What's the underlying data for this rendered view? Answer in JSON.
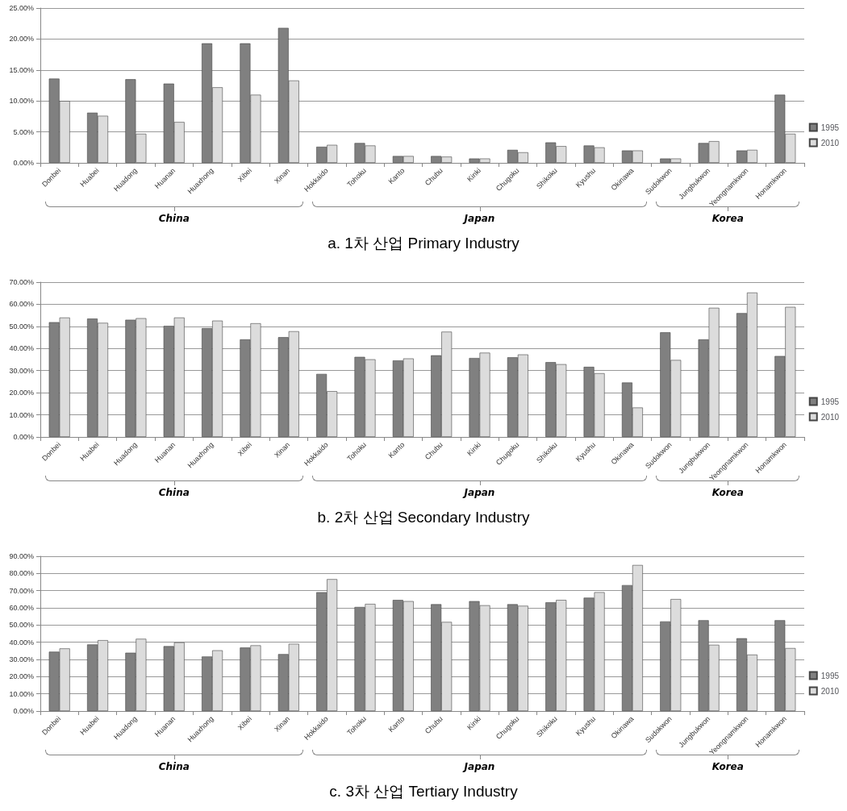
{
  "chart_data": [
    {
      "type": "bar",
      "title": "a. 1차 산업 Primary Industry",
      "categories": [
        "Donbei",
        "Huabei",
        "Huadong",
        "Huanan",
        "Huaxhong",
        "Xibei",
        "Xinan",
        "Hokkaido",
        "Tohoku",
        "Kanto",
        "Chubu",
        "Kinki",
        "Chugoku",
        "Shikoku",
        "Kyushu",
        "Okinawa",
        "Sudokwon",
        "Jungbukwon",
        "Yeongnamkwon",
        "Honamkwon"
      ],
      "series": [
        {
          "name": "1995",
          "color": "#808080",
          "values": [
            13.6,
            8.1,
            13.5,
            12.8,
            19.3,
            19.3,
            21.8,
            2.6,
            3.2,
            1.1,
            1.1,
            0.7,
            2.1,
            3.3,
            2.8,
            2.0,
            0.7,
            3.2,
            2.0,
            11.0
          ]
        },
        {
          "name": "2010",
          "color": "#dcdcdc",
          "values": [
            10.0,
            7.6,
            4.7,
            6.6,
            12.2,
            11.0,
            13.3,
            2.9,
            2.8,
            1.1,
            1.0,
            0.7,
            1.7,
            2.7,
            2.5,
            2.0,
            0.7,
            3.5,
            2.1,
            4.7
          ]
        }
      ],
      "ylim": [
        0,
        25
      ],
      "yticks": [
        {
          "value": 0,
          "label": "0.00%"
        },
        {
          "value": 5,
          "label": "5.00%"
        },
        {
          "value": 10,
          "label": "10.00%"
        },
        {
          "value": 15,
          "label": "15.00%"
        },
        {
          "value": 20,
          "label": "20.00%"
        },
        {
          "value": 25,
          "label": "25.00%"
        }
      ],
      "grid": "y",
      "legend": "right",
      "annotations": [
        "China",
        "Japan",
        "Korea"
      ]
    },
    {
      "type": "bar",
      "title": "b. 2차 산업 Secondary Industry",
      "categories": [
        "Donbei",
        "Huabei",
        "Huadong",
        "Huanan",
        "Huaxhong",
        "Xibei",
        "Xinan",
        "Hokkaido",
        "Tohoku",
        "Kanto",
        "Chubu",
        "Kinki",
        "Chugoku",
        "Shikoku",
        "Kyushu",
        "Okinawa",
        "Sudokwon",
        "Jungbukwon",
        "Yeongnamkwon",
        "Honamkwon"
      ],
      "series": [
        {
          "name": "1995",
          "color": "#808080",
          "values": [
            51.9,
            53.5,
            53.0,
            50.2,
            49.2,
            44.1,
            45.1,
            28.5,
            36.2,
            34.6,
            36.9,
            35.7,
            36.0,
            33.8,
            31.7,
            24.6,
            47.3,
            44.1,
            56.0,
            36.6
          ]
        },
        {
          "name": "2010",
          "color": "#dcdcdc",
          "values": [
            54.0,
            51.6,
            53.7,
            54.0,
            52.6,
            51.4,
            47.8,
            20.7,
            35.1,
            35.5,
            47.6,
            38.1,
            37.3,
            32.9,
            28.8,
            13.3,
            34.8,
            58.4,
            65.3,
            58.8
          ]
        }
      ],
      "ylim": [
        0,
        70
      ],
      "yticks": [
        {
          "value": 0,
          "label": "0.00%"
        },
        {
          "value": 10,
          "label": "10.00%"
        },
        {
          "value": 20,
          "label": "20.00%"
        },
        {
          "value": 30,
          "label": "30.00%"
        },
        {
          "value": 40,
          "label": "40.00%"
        },
        {
          "value": 50,
          "label": "50.00%"
        },
        {
          "value": 60,
          "label": "60.00%"
        },
        {
          "value": 70,
          "label": "70.00%"
        }
      ],
      "grid": "y",
      "legend": "right",
      "annotations": [
        "China",
        "Japan",
        "Korea"
      ]
    },
    {
      "type": "bar",
      "title": "c. 3차 산업 Tertiary Industry",
      "categories": [
        "Donbei",
        "Huabei",
        "Huadong",
        "Huanan",
        "Huaxhong",
        "Xibei",
        "Xinan",
        "Hokkaido",
        "Tohoku",
        "Kanto",
        "Chubu",
        "Kinki",
        "Chugoku",
        "Shikoku",
        "Kyushu",
        "Okinawa",
        "Sudokwon",
        "Jungbukwon",
        "Yeongnamkwon",
        "Honamkwon"
      ],
      "series": [
        {
          "name": "1995",
          "color": "#808080",
          "values": [
            34.5,
            38.7,
            33.9,
            37.7,
            31.7,
            36.9,
            33.1,
            69.1,
            60.5,
            64.6,
            62.1,
            63.9,
            62.1,
            63.2,
            65.9,
            73.2,
            52.1,
            52.8,
            42.3,
            52.8
          ]
        },
        {
          "name": "2010",
          "color": "#dcdcdc",
          "values": [
            36.4,
            41.2,
            42.0,
            39.9,
            35.3,
            38.2,
            39.1,
            76.7,
            62.3,
            63.9,
            51.8,
            61.5,
            61.2,
            64.6,
            69.1,
            84.9,
            65.1,
            38.5,
            32.8,
            36.6
          ]
        }
      ],
      "ylim": [
        0,
        90
      ],
      "yticks": [
        {
          "value": 0,
          "label": "0.00%"
        },
        {
          "value": 10,
          "label": "10.00%"
        },
        {
          "value": 20,
          "label": "20.00%"
        },
        {
          "value": 30,
          "label": "30.00%"
        },
        {
          "value": 40,
          "label": "40.00%"
        },
        {
          "value": 50,
          "label": "50.00%"
        },
        {
          "value": 60,
          "label": "60.00%"
        },
        {
          "value": 70,
          "label": "70.00%"
        },
        {
          "value": 80,
          "label": "80.00%"
        },
        {
          "value": 90,
          "label": "90.00%"
        }
      ],
      "grid": "y",
      "legend": "right",
      "annotations": [
        "China",
        "Japan",
        "Korea"
      ]
    }
  ]
}
